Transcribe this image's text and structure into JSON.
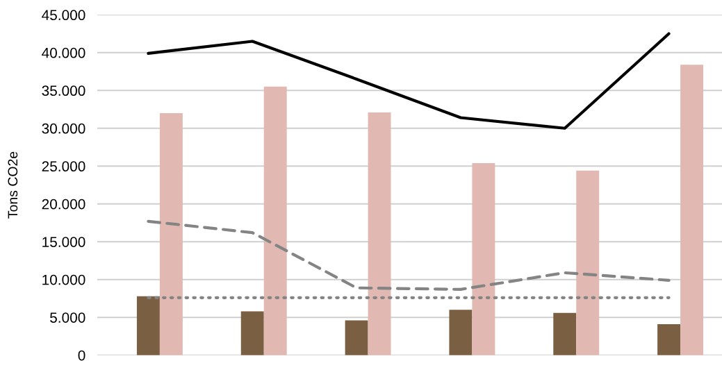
{
  "chart_data": {
    "type": "bar",
    "ylabel": "Tons CO2e",
    "categories": [
      null,
      null,
      null,
      null,
      null,
      null
    ],
    "series": [
      {
        "color": "#7a5f42",
        "values": [
          7800,
          5800,
          4600,
          6000,
          5600,
          4100
        ]
      },
      {
        "color": "#e1b9b2",
        "values": [
          32000,
          35500,
          32100,
          25400,
          24400,
          38400
        ]
      },
      {
        "type": "line",
        "color": "#000000",
        "line_style": "solid",
        "values": [
          39900,
          41500,
          36500,
          31400,
          30000,
          42500
        ]
      },
      {
        "type": "line",
        "color": "#848484",
        "line_style": "dashed",
        "values": [
          17700,
          16200,
          8900,
          8700,
          10900,
          9900
        ]
      },
      {
        "type": "line",
        "color": "#848484",
        "line_style": "dotted",
        "values": [
          7600,
          7600,
          7600,
          7600,
          7600,
          7600
        ]
      }
    ],
    "ylim": [
      0,
      45000
    ],
    "yticks": [
      {
        "value": 0,
        "label": "0"
      },
      {
        "value": 5000,
        "label": "5.000"
      },
      {
        "value": 10000,
        "label": "10.000"
      },
      {
        "value": 15000,
        "label": "15.000"
      },
      {
        "value": 20000,
        "label": "20.000"
      },
      {
        "value": 25000,
        "label": "25.000"
      },
      {
        "value": 30000,
        "label": "30.000"
      },
      {
        "value": 35000,
        "label": "35.000"
      },
      {
        "value": 40000,
        "label": "40.000"
      },
      {
        "value": 45000,
        "label": "45.000"
      }
    ],
    "grid": "y",
    "tick_labels": "y"
  }
}
